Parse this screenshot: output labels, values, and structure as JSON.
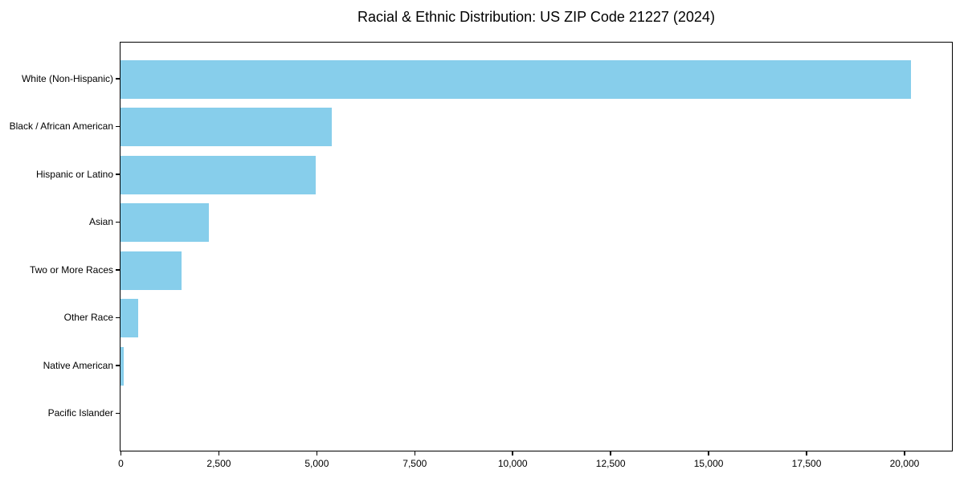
{
  "chart_data": {
    "type": "bar",
    "orientation": "horizontal",
    "title": "Racial & Ethnic Distribution: US ZIP Code 21227 (2024)",
    "categories": [
      "White (Non-Hispanic)",
      "Black / African American",
      "Hispanic or Latino",
      "Asian",
      "Two or More Races",
      "Other Race",
      "Native American",
      "Pacific Islander"
    ],
    "values": [
      20170,
      5390,
      4990,
      2250,
      1550,
      450,
      75,
      0
    ],
    "xlabel": "",
    "ylabel": "",
    "xlim": [
      0,
      21200
    ],
    "x_ticks": [
      0,
      2500,
      5000,
      7500,
      10000,
      12500,
      15000,
      17500,
      20000
    ],
    "x_tick_labels": [
      "0",
      "2,500",
      "5,000",
      "7,500",
      "10,000",
      "12,500",
      "15,000",
      "17,500",
      "20,000"
    ],
    "bar_color": "#87CEEB",
    "axis_color": "#000000",
    "grid": false,
    "legend": "none"
  }
}
